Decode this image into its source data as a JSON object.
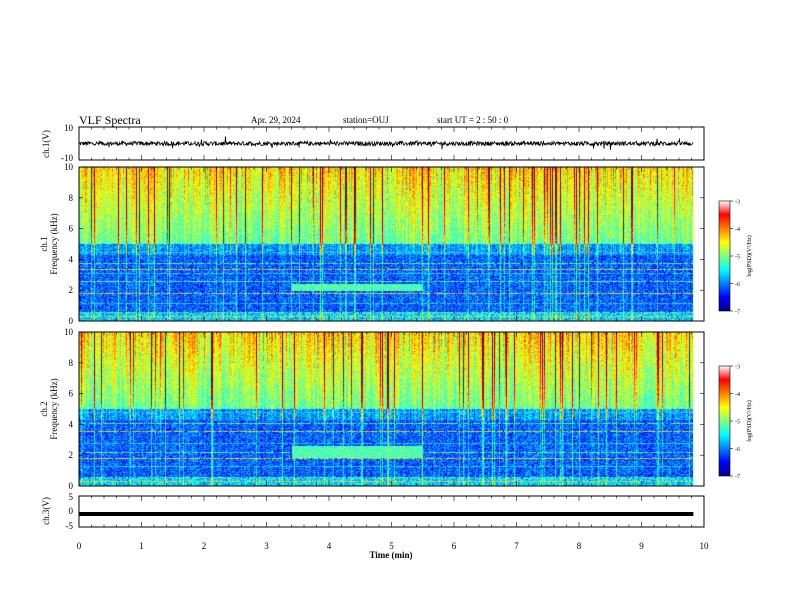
{
  "header": {
    "title": "VLF Spectra",
    "date": "Apr. 29, 2024",
    "station": "station=OUJ",
    "start": "start  UT =  2 : 50 : 0"
  },
  "chart_data": [
    {
      "type": "line",
      "panel": "ch1-waveform",
      "ylabel": "ch.1(V)",
      "ylim": [
        -10,
        10
      ],
      "y_ticks": [
        "10",
        "-10"
      ],
      "baseline_value": 0,
      "x_range_min": [
        0,
        9.83
      ]
    },
    {
      "type": "heatmap",
      "panel": "ch1-spectrogram",
      "ylabel_lines": [
        "ch.1",
        "Frequency (kHz)"
      ],
      "ylim": [
        0,
        10
      ],
      "y_ticks": [
        "0",
        "2",
        "4",
        "6",
        "8",
        "10"
      ],
      "x_range_min": [
        0,
        9.83
      ],
      "colorbar": {
        "label": "log(PSD)(V²/Hz)",
        "range": [
          -7,
          -3
        ],
        "ticks": [
          "-3",
          "-4",
          "-5",
          "-6",
          "-7"
        ],
        "colormap": "jet"
      },
      "features": {
        "noise_floor_band_khz": [
          0,
          5
        ],
        "sferic_band_khz": [
          5,
          10
        ],
        "enhanced_band": {
          "t_min": [
            3.4,
            5.5
          ],
          "f_khz": [
            1.9,
            2.4
          ]
        },
        "hum_lines_khz": [
          0.35,
          0.6,
          1.2,
          1.8,
          2.6,
          3.1,
          3.4,
          3.75,
          4.5
        ]
      }
    },
    {
      "type": "heatmap",
      "panel": "ch2-spectrogram",
      "ylabel_lines": [
        "ch.2",
        "Frequency (kHz)"
      ],
      "ylim": [
        0,
        10
      ],
      "y_ticks": [
        "0",
        "2",
        "4",
        "6",
        "8",
        "10"
      ],
      "x_range_min": [
        0,
        9.83
      ],
      "colorbar": {
        "label": "log(PSD)(V²/Hz)",
        "range": [
          -7,
          -3
        ],
        "ticks": [
          "-3",
          "-4",
          "-5",
          "-6",
          "-7"
        ],
        "colormap": "jet"
      },
      "features": {
        "noise_floor_band_khz": [
          0,
          5
        ],
        "sferic_band_khz": [
          5,
          10
        ],
        "enhanced_band": {
          "t_min": [
            3.4,
            5.5
          ],
          "f_khz": [
            1.8,
            2.6
          ]
        },
        "hum_lines_khz": [
          0.35,
          0.6,
          1.3,
          1.8,
          2.2,
          2.8,
          3.6,
          4.1,
          4.8
        ]
      }
    },
    {
      "type": "line",
      "panel": "ch3-waveform",
      "ylabel": "ch.3(V)",
      "ylim": [
        -5,
        5
      ],
      "y_ticks": [
        "5",
        "0",
        "-5"
      ],
      "baseline_value": -0.8,
      "x_range_min": [
        0,
        9.83
      ],
      "xlabel": "Time (min)",
      "xlim": [
        0,
        10
      ],
      "x_ticks": [
        "0",
        "1",
        "2",
        "3",
        "4",
        "5",
        "6",
        "7",
        "8",
        "9",
        "10"
      ]
    }
  ]
}
